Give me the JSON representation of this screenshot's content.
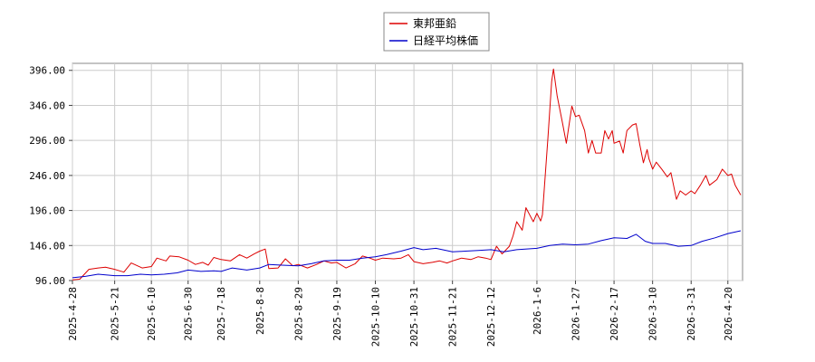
{
  "chart_data": {
    "type": "line",
    "title": "",
    "xlabel": "",
    "ylabel": "",
    "legend_position": "top-center",
    "grid": true,
    "ylim": [
      96,
      406
    ],
    "xlim": [
      "2025-04-28",
      "2026-04-28"
    ],
    "y_ticks": [
      "96.00",
      "146.00",
      "196.00",
      "246.00",
      "296.00",
      "346.00",
      "396.00"
    ],
    "x_ticks": [
      "2025-4-28",
      "2025-5-21",
      "2025-6-10",
      "2025-6-30",
      "2025-7-18",
      "2025-8-8",
      "2025-8-29",
      "2025-9-19",
      "2025-10-10",
      "2025-10-31",
      "2025-11-21",
      "2025-12-12",
      "2026-1-6",
      "2026-1-27",
      "2026-2-17",
      "2026-3-10",
      "2026-3-31",
      "2026-4-20"
    ],
    "series": [
      {
        "name": "東邦亜鉛",
        "color": "#dd0000",
        "points": [
          [
            "2025-04-28",
            97
          ],
          [
            "2025-05-02",
            98
          ],
          [
            "2025-05-07",
            112
          ],
          [
            "2025-05-12",
            114
          ],
          [
            "2025-05-16",
            115
          ],
          [
            "2025-05-21",
            112
          ],
          [
            "2025-05-26",
            108
          ],
          [
            "2025-05-30",
            121
          ],
          [
            "2025-06-05",
            114
          ],
          [
            "2025-06-10",
            116
          ],
          [
            "2025-06-13",
            128
          ],
          [
            "2025-06-18",
            124
          ],
          [
            "2025-06-20",
            131
          ],
          [
            "2025-06-25",
            130
          ],
          [
            "2025-06-30",
            125
          ],
          [
            "2025-07-04",
            119
          ],
          [
            "2025-07-08",
            122
          ],
          [
            "2025-07-11",
            118
          ],
          [
            "2025-07-14",
            129
          ],
          [
            "2025-07-18",
            126
          ],
          [
            "2025-07-23",
            124
          ],
          [
            "2025-07-28",
            133
          ],
          [
            "2025-08-01",
            128
          ],
          [
            "2025-08-05",
            134
          ],
          [
            "2025-08-08",
            138
          ],
          [
            "2025-08-11",
            141
          ],
          [
            "2025-08-13",
            113
          ],
          [
            "2025-08-18",
            114
          ],
          [
            "2025-08-22",
            127
          ],
          [
            "2025-08-26",
            117
          ],
          [
            "2025-08-29",
            119
          ],
          [
            "2025-09-03",
            114
          ],
          [
            "2025-09-08",
            119
          ],
          [
            "2025-09-12",
            124
          ],
          [
            "2025-09-16",
            121
          ],
          [
            "2025-09-19",
            122
          ],
          [
            "2025-09-24",
            114
          ],
          [
            "2025-09-29",
            120
          ],
          [
            "2025-10-03",
            131
          ],
          [
            "2025-10-07",
            128
          ],
          [
            "2025-10-10",
            125
          ],
          [
            "2025-10-14",
            128
          ],
          [
            "2025-10-20",
            127
          ],
          [
            "2025-10-24",
            128
          ],
          [
            "2025-10-28",
            133
          ],
          [
            "2025-10-31",
            123
          ],
          [
            "2025-11-05",
            120
          ],
          [
            "2025-11-10",
            122
          ],
          [
            "2025-11-14",
            124
          ],
          [
            "2025-11-18",
            121
          ],
          [
            "2025-11-21",
            124
          ],
          [
            "2025-11-26",
            128
          ],
          [
            "2025-12-01",
            126
          ],
          [
            "2025-12-05",
            130
          ],
          [
            "2025-12-09",
            128
          ],
          [
            "2025-12-12",
            126
          ],
          [
            "2025-12-15",
            145
          ],
          [
            "2025-12-18",
            134
          ],
          [
            "2025-12-22",
            145
          ],
          [
            "2025-12-24",
            160
          ],
          [
            "2025-12-26",
            180
          ],
          [
            "2025-12-29",
            168
          ],
          [
            "2025-12-31",
            200
          ],
          [
            "2026-01-02",
            190
          ],
          [
            "2026-01-04",
            180
          ],
          [
            "2026-01-06",
            192
          ],
          [
            "2026-01-08",
            181
          ],
          [
            "2026-01-09",
            190
          ],
          [
            "2026-01-12",
            300
          ],
          [
            "2026-01-14",
            380
          ],
          [
            "2026-01-15",
            398
          ],
          [
            "2026-01-17",
            360
          ],
          [
            "2026-01-20",
            320
          ],
          [
            "2026-01-22",
            292
          ],
          [
            "2026-01-25",
            345
          ],
          [
            "2026-01-27",
            330
          ],
          [
            "2026-01-29",
            332
          ],
          [
            "2026-02-01",
            310
          ],
          [
            "2026-02-03",
            278
          ],
          [
            "2026-02-05",
            296
          ],
          [
            "2026-02-07",
            278
          ],
          [
            "2026-02-10",
            278
          ],
          [
            "2026-02-12",
            310
          ],
          [
            "2026-02-14",
            298
          ],
          [
            "2026-02-16",
            310
          ],
          [
            "2026-02-17",
            292
          ],
          [
            "2026-02-20",
            295
          ],
          [
            "2026-02-22",
            278
          ],
          [
            "2026-02-24",
            310
          ],
          [
            "2026-02-27",
            318
          ],
          [
            "2026-03-01",
            320
          ],
          [
            "2026-03-03",
            290
          ],
          [
            "2026-03-05",
            264
          ],
          [
            "2026-03-07",
            283
          ],
          [
            "2026-03-08",
            270
          ],
          [
            "2026-03-10",
            255
          ],
          [
            "2026-03-12",
            265
          ],
          [
            "2026-03-15",
            255
          ],
          [
            "2026-03-18",
            244
          ],
          [
            "2026-03-20",
            250
          ],
          [
            "2026-03-23",
            212
          ],
          [
            "2026-03-25",
            224
          ],
          [
            "2026-03-28",
            218
          ],
          [
            "2026-03-31",
            224
          ],
          [
            "2026-04-02",
            220
          ],
          [
            "2026-04-05",
            232
          ],
          [
            "2026-04-08",
            246
          ],
          [
            "2026-04-10",
            232
          ],
          [
            "2026-04-14",
            240
          ],
          [
            "2026-04-17",
            255
          ],
          [
            "2026-04-20",
            246
          ],
          [
            "2026-04-22",
            248
          ],
          [
            "2026-04-24",
            232
          ],
          [
            "2026-04-27",
            218
          ]
        ]
      },
      {
        "name": "日経平均株価",
        "color": "#0000cc",
        "points": [
          [
            "2025-04-28",
            100
          ],
          [
            "2025-05-05",
            102
          ],
          [
            "2025-05-12",
            105
          ],
          [
            "2025-05-21",
            103
          ],
          [
            "2025-05-28",
            103
          ],
          [
            "2025-06-04",
            105
          ],
          [
            "2025-06-10",
            104
          ],
          [
            "2025-06-17",
            105
          ],
          [
            "2025-06-24",
            107
          ],
          [
            "2025-06-30",
            111
          ],
          [
            "2025-07-07",
            109
          ],
          [
            "2025-07-14",
            110
          ],
          [
            "2025-07-18",
            109
          ],
          [
            "2025-07-24",
            114
          ],
          [
            "2025-08-01",
            111
          ],
          [
            "2025-08-08",
            114
          ],
          [
            "2025-08-13",
            119
          ],
          [
            "2025-08-20",
            118
          ],
          [
            "2025-08-29",
            117
          ],
          [
            "2025-09-05",
            120
          ],
          [
            "2025-09-12",
            124
          ],
          [
            "2025-09-19",
            125
          ],
          [
            "2025-09-26",
            125
          ],
          [
            "2025-10-03",
            128
          ],
          [
            "2025-10-10",
            130
          ],
          [
            "2025-10-16",
            133
          ],
          [
            "2025-10-24",
            138
          ],
          [
            "2025-10-31",
            143
          ],
          [
            "2025-11-05",
            140
          ],
          [
            "2025-11-12",
            142
          ],
          [
            "2025-11-21",
            137
          ],
          [
            "2025-11-28",
            138
          ],
          [
            "2025-12-05",
            139
          ],
          [
            "2025-12-12",
            140
          ],
          [
            "2025-12-19",
            137
          ],
          [
            "2025-12-26",
            140
          ],
          [
            "2026-01-06",
            142
          ],
          [
            "2026-01-13",
            146
          ],
          [
            "2026-01-20",
            148
          ],
          [
            "2026-01-27",
            147
          ],
          [
            "2026-02-03",
            148
          ],
          [
            "2026-02-10",
            153
          ],
          [
            "2026-02-17",
            157
          ],
          [
            "2026-02-24",
            156
          ],
          [
            "2026-03-01",
            162
          ],
          [
            "2026-03-06",
            152
          ],
          [
            "2026-03-10",
            149
          ],
          [
            "2026-03-17",
            149
          ],
          [
            "2026-03-24",
            145
          ],
          [
            "2026-03-31",
            146
          ],
          [
            "2026-04-06",
            152
          ],
          [
            "2026-04-13",
            157
          ],
          [
            "2026-04-20",
            163
          ],
          [
            "2026-04-27",
            167
          ]
        ]
      }
    ]
  }
}
